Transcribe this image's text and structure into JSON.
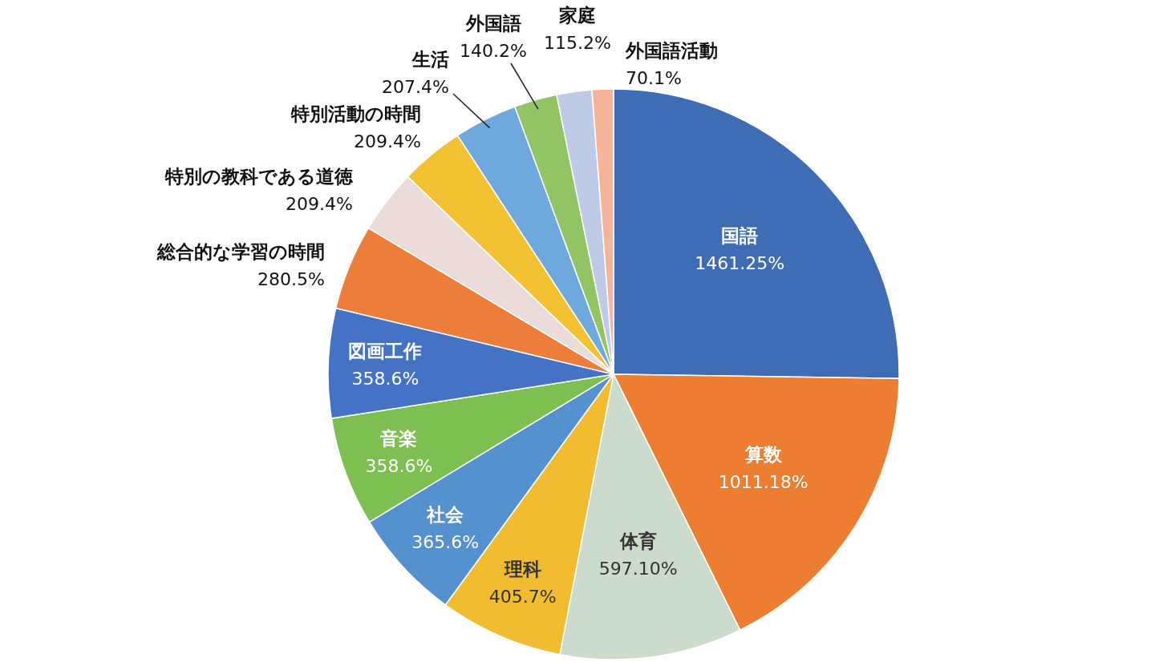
{
  "chart_data": {
    "type": "pie",
    "categories": [
      "国語",
      "算数",
      "体育",
      "理科",
      "社会",
      "音楽",
      "図画工作",
      "総合的な学習の時間",
      "特別の教科である道徳",
      "特別活動の時間",
      "生活",
      "外国語",
      "家庭",
      "外国語活動"
    ],
    "values": [
      1461.25,
      1011.18,
      597.1,
      405.7,
      365.6,
      358.6,
      358.6,
      280.5,
      209.4,
      209.4,
      207.4,
      140.2,
      115.2,
      70.1
    ],
    "value_labels": [
      "1461.25%",
      "1011.18%",
      "597.10%",
      "405.7%",
      "365.6%",
      "358.6%",
      "358.6%",
      "280.5%",
      "209.4%",
      "209.4%",
      "207.4%",
      "140.2%",
      "115.2%",
      "70.1%"
    ],
    "colors": [
      "#3f6db5",
      "#ed7d31",
      "#ccdbcb",
      "#f2bc30",
      "#5590cf",
      "#7dbf50",
      "#4472c4",
      "#ed7d3a",
      "#ebdcd9",
      "#f2c232",
      "#6fa8dc",
      "#93c464",
      "#bfcbe6",
      "#f5b49a"
    ],
    "legend": false
  }
}
